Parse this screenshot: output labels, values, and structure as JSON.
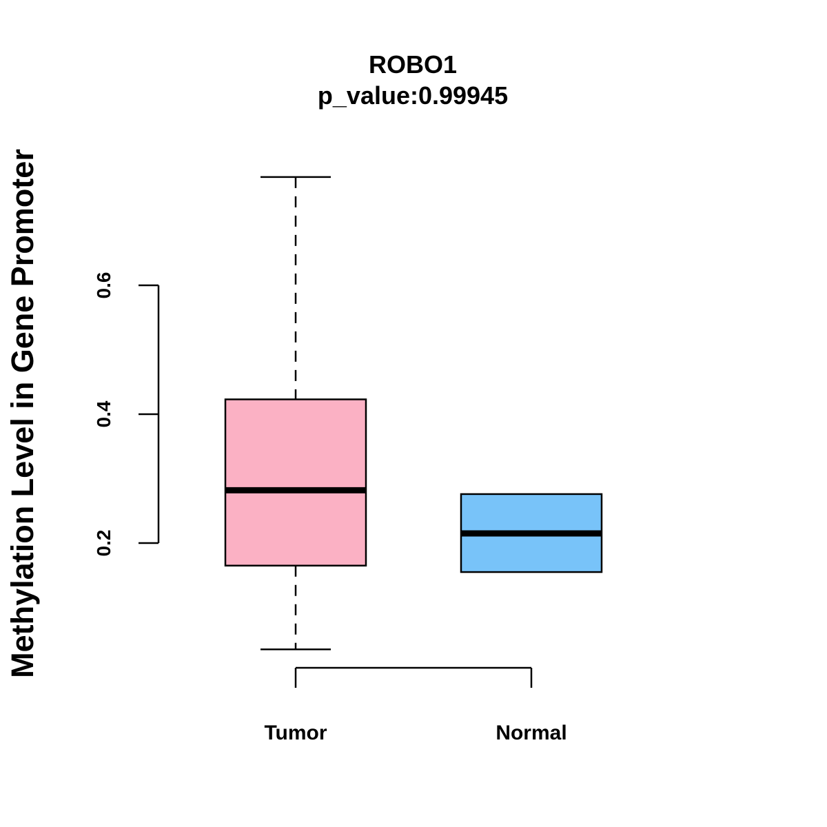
{
  "chart_data": {
    "type": "box",
    "title": "ROBO1",
    "subtitle": "p_value:0.99945",
    "ylabel": "Methylation Level in Gene Promoter",
    "xlabel": "",
    "yticks": [
      "0.2",
      "0.4",
      "0.6"
    ],
    "categories": [
      "Tumor",
      "Normal"
    ],
    "colors": [
      "#FBB1C4",
      "#78C3F9"
    ],
    "series": [
      {
        "category": "Tumor",
        "min": 0.035,
        "q1": 0.165,
        "median": 0.282,
        "q3": 0.423,
        "max": 0.768
      },
      {
        "category": "Normal",
        "min": 0.155,
        "q1": 0.155,
        "median": 0.215,
        "q3": 0.276,
        "max": 0.276
      }
    ],
    "grid": false,
    "legend": "none"
  }
}
